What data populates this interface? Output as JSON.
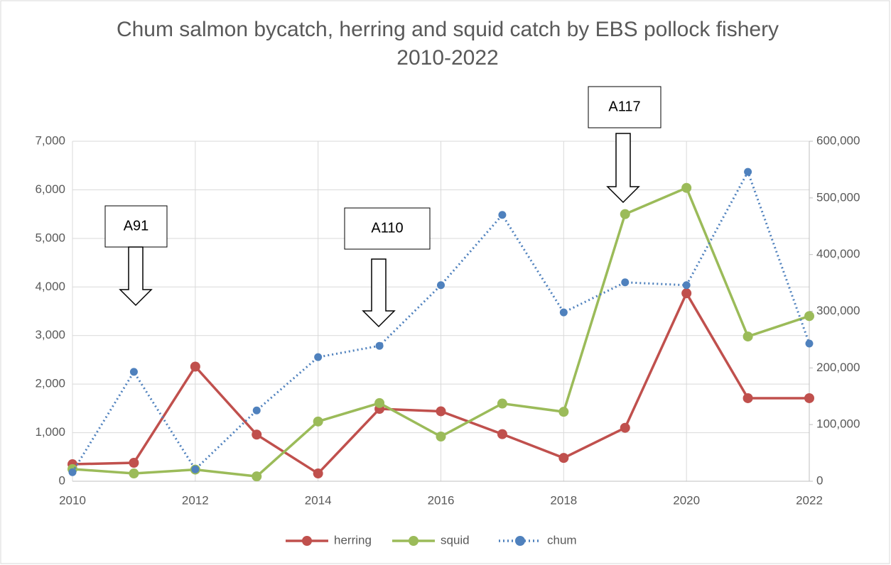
{
  "chart_data": {
    "type": "line",
    "title": "Chum salmon bycatch, herring and squid catch by EBS pollock fishery",
    "subtitle": "2010-2022",
    "x": [
      2010,
      2011,
      2012,
      2013,
      2014,
      2015,
      2016,
      2017,
      2018,
      2019,
      2020,
      2021,
      2022
    ],
    "xlim": [
      2010,
      2022
    ],
    "xticks": [
      2010,
      2012,
      2014,
      2016,
      2018,
      2020,
      2022
    ],
    "ylim": [
      0,
      7000
    ],
    "yticks": [
      0,
      {
        "value": 1000,
        "label": "1,000"
      },
      {
        "value": 2000,
        "label": "2,000"
      },
      {
        "value": 3000,
        "label": "3,000"
      },
      {
        "value": 4000,
        "label": "4,000"
      },
      {
        "value": 5000,
        "label": "5,000"
      },
      {
        "value": 6000,
        "label": "6,000"
      },
      {
        "value": 7000,
        "label": "7,000"
      }
    ],
    "y2lim": [
      0,
      600000
    ],
    "y2ticks": [
      0,
      {
        "value": 100000,
        "label": "100,000"
      },
      {
        "value": 200000,
        "label": "200,000"
      },
      {
        "value": 300000,
        "label": "300,000"
      },
      {
        "value": 400000,
        "label": "400,000"
      },
      {
        "value": 500000,
        "label": "500,000"
      },
      {
        "value": 600000,
        "label": "600,000"
      }
    ],
    "grid": true,
    "legend": "bottom",
    "series": [
      {
        "name": "herring",
        "color": "#c0504d",
        "values": [
          350,
          380,
          2360,
          960,
          160,
          1490,
          1440,
          970,
          480,
          1100,
          3870,
          1710,
          1710
        ]
      },
      {
        "name": "squid",
        "color": "#9bbb59",
        "values": [
          250,
          160,
          240,
          100,
          1230,
          1610,
          920,
          1600,
          1430,
          5500,
          6040,
          2980,
          3400
        ]
      },
      {
        "name": "chum",
        "color": "#4f81bd",
        "axis": "y2",
        "dashed": true,
        "values": [
          16000,
          193000,
          21000,
          125000,
          219000,
          239000,
          346000,
          470000,
          298000,
          351000,
          346000,
          546000,
          243000
        ]
      }
    ],
    "annotations": [
      {
        "text": "A91"
      },
      {
        "text": "A110"
      },
      {
        "text": "A117"
      }
    ]
  }
}
